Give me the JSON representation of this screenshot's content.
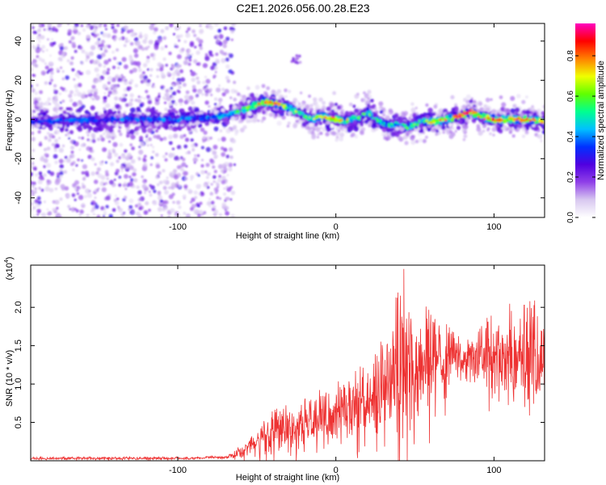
{
  "title": "C2E1.2026.056.00.28.E23",
  "colors": {
    "snr_line": "#ee3333",
    "frame": "#000000",
    "background": "#ffffff"
  },
  "chart_data": [
    {
      "type": "heatmap",
      "title": "",
      "xlabel": "Height of straight line (km)",
      "ylabel": "Frequency (Hz)",
      "xlim": [
        -193,
        132
      ],
      "ylim": [
        -50,
        49
      ],
      "x_ticks": [
        -100,
        0,
        100
      ],
      "x_tick_labels": [
        "-100",
        "0",
        "100"
      ],
      "y_ticks": [
        -40,
        -20,
        0,
        20,
        40
      ],
      "y_tick_labels": [
        "-40",
        "-20",
        "0",
        "20",
        "40"
      ],
      "colorbar": {
        "label": "Normalized spectral amplitude",
        "range": [
          0,
          0.96
        ],
        "ticks": [
          0.0,
          0.2,
          0.4,
          0.6,
          0.8
        ],
        "tick_labels": [
          "0.0",
          "0.2",
          "0.4",
          "0.6",
          "0.8"
        ],
        "colormap": [
          "#ffffff",
          "#d8c8f0",
          "#9040e8",
          "#5000e0",
          "#0030ff",
          "#00c0ff",
          "#00ff90",
          "#60ff00",
          "#f0ff00",
          "#ff8000",
          "#ff0000",
          "#ff00c0"
        ]
      },
      "ridge": {
        "x": [
          -193,
          -150,
          -100,
          -80,
          -70,
          -62,
          -55,
          -45,
          -38,
          -30,
          -25,
          -20,
          -15,
          -10,
          -5,
          0,
          5,
          10,
          15,
          20,
          25,
          30,
          35,
          40,
          45,
          50,
          55,
          60,
          65,
          70,
          75,
          80,
          85,
          90,
          95,
          100,
          110,
          120,
          132
        ],
        "frequency": [
          -1,
          0,
          0,
          1,
          2,
          4,
          6,
          9,
          8,
          6,
          4,
          2,
          0,
          2,
          1,
          0,
          -1,
          0,
          1,
          4,
          0,
          -2,
          -3,
          -2,
          -4,
          -3,
          -1,
          -1,
          -1,
          0,
          1,
          2,
          4,
          2,
          1,
          0,
          0,
          0,
          -1
        ],
        "amplitude": [
          0.45,
          0.4,
          0.45,
          0.45,
          0.55,
          0.6,
          0.68,
          0.8,
          0.78,
          0.7,
          0.62,
          0.58,
          0.6,
          0.65,
          0.7,
          0.78,
          0.7,
          0.62,
          0.6,
          0.58,
          0.55,
          0.5,
          0.48,
          0.5,
          0.55,
          0.58,
          0.62,
          0.7,
          0.75,
          0.8,
          0.82,
          0.85,
          0.88,
          0.82,
          0.84,
          0.85,
          0.8,
          0.82,
          0.72
        ]
      },
      "noise_region_x_max": -64,
      "isolated_patch": {
        "x": -25,
        "frequency": 30
      }
    },
    {
      "type": "line",
      "title": "",
      "xlabel": "Height of straight line (km)",
      "ylabel": "SNR (10 * v/v)",
      "y_multiplier": "(x10",
      "y_multiplier_exp": "4",
      "y_multiplier_close": ")",
      "xlim": [
        -193,
        132
      ],
      "ylim": [
        0,
        2.55
      ],
      "x_ticks": [
        -100,
        0,
        100
      ],
      "x_tick_labels": [
        "-100",
        "0",
        "100"
      ],
      "y_ticks": [
        0.5,
        1.0,
        1.5,
        2.0
      ],
      "y_tick_labels": [
        "0.5",
        "1.0",
        "1.5",
        "2.0"
      ],
      "series": [
        {
          "name": "SNR",
          "x": [
            -193,
            -150,
            -100,
            -80,
            -70,
            -65,
            -60,
            -55,
            -50,
            -45,
            -40,
            -35,
            -30,
            -25,
            -20,
            -15,
            -10,
            -5,
            0,
            5,
            10,
            15,
            20,
            25,
            30,
            35,
            40,
            45,
            50,
            55,
            60,
            65,
            70,
            75,
            80,
            85,
            90,
            95,
            100,
            105,
            110,
            115,
            120,
            125,
            132
          ],
          "mean": [
            0.03,
            0.03,
            0.03,
            0.04,
            0.04,
            0.06,
            0.12,
            0.2,
            0.25,
            0.3,
            0.33,
            0.38,
            0.4,
            0.42,
            0.44,
            0.48,
            0.52,
            0.55,
            0.58,
            0.62,
            0.68,
            0.72,
            0.78,
            0.85,
            0.9,
            0.95,
            1.0,
            1.05,
            1.1,
            1.18,
            1.22,
            1.28,
            1.32,
            1.38,
            1.35,
            1.3,
            1.28,
            1.3,
            1.32,
            1.3,
            1.28,
            1.3,
            1.32,
            1.3,
            1.25
          ],
          "peak": [
            0.05,
            0.05,
            0.05,
            0.06,
            0.06,
            0.1,
            0.25,
            0.35,
            0.45,
            0.55,
            0.7,
            0.75,
            0.8,
            0.75,
            0.8,
            0.9,
            0.95,
            0.9,
            1.05,
            1.0,
            1.15,
            1.35,
            1.2,
            1.45,
            1.6,
            1.65,
            2.5,
            1.9,
            2.05,
            1.95,
            2.1,
            1.8,
            1.9,
            1.65,
            1.6,
            1.6,
            1.7,
            1.85,
            1.95,
            1.9,
            2.05,
            1.9,
            2.1,
            2.15,
            1.8
          ]
        }
      ]
    }
  ]
}
